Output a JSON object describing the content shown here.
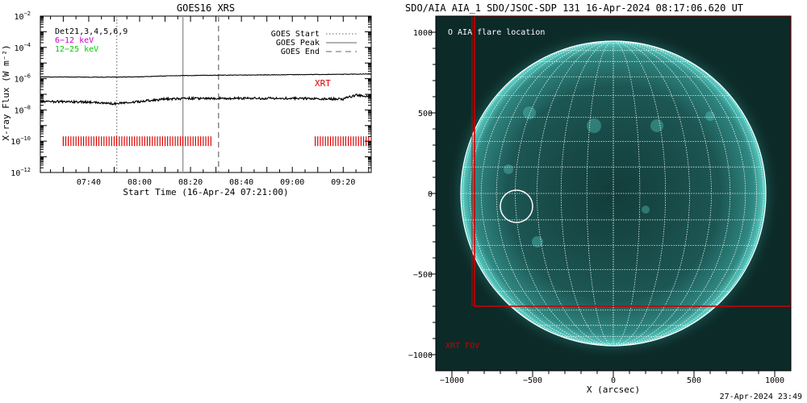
{
  "chart_data": [
    {
      "type": "line",
      "title": "GOES16 XRS",
      "xlabel": "Start Time (16-Apr-24 07:21:00)",
      "ylabel": "X-ray Flux (W m⁻²)",
      "xlim": [
        "07:21",
        "09:31"
      ],
      "y_scale": "log",
      "ylim": [
        1e-12,
        0.01
      ],
      "x_ticks": [
        "07:40",
        "08:00",
        "08:20",
        "08:40",
        "09:00",
        "09:20"
      ],
      "y_ticks": [
        {
          "value": 1e-12,
          "base": "10",
          "exp": "−12"
        },
        {
          "value": 1e-10,
          "base": "10",
          "exp": "−10"
        },
        {
          "value": 1e-08,
          "base": "10",
          "exp": "−8"
        },
        {
          "value": 1e-06,
          "base": "10",
          "exp": "−6"
        },
        {
          "value": 0.0001,
          "base": "10",
          "exp": "−4"
        },
        {
          "value": 0.01,
          "base": "10",
          "exp": "−2"
        }
      ],
      "channel_labels": [
        {
          "text": "Det21,3,4,5,6,9",
          "color": "#000000"
        },
        {
          "text": "6−12 keV",
          "color": "#cc00cc"
        },
        {
          "text": "12−25 keV",
          "color": "#00cc00"
        }
      ],
      "legend": {
        "position": "top-right",
        "entries": [
          {
            "label": "GOES Start",
            "style": "dotted"
          },
          {
            "label": "GOES Peak",
            "style": "solid"
          },
          {
            "label": "GOES End",
            "style": "dashed"
          }
        ]
      },
      "event_lines": [
        {
          "time": "07:51",
          "style": "dotted"
        },
        {
          "time": "08:17",
          "style": "solid"
        },
        {
          "time": "08:31",
          "style": "dashed"
        }
      ],
      "series": [
        {
          "name": "",
          "color": "#000000",
          "x": [
            "07:21",
            "07:40",
            "08:00",
            "08:10",
            "08:20",
            "08:40",
            "09:00",
            "09:20",
            "09:31"
          ],
          "y": [
            1.3e-06,
            1.25e-06,
            1.3e-06,
            1.5e-06,
            1.6e-06,
            1.7e-06,
            1.8e-06,
            1.9e-06,
            2e-06
          ]
        },
        {
          "name": "",
          "color": "#000000",
          "x": [
            "07:21",
            "07:40",
            "07:50",
            "08:00",
            "08:10",
            "08:20",
            "08:40",
            "09:00",
            "09:20",
            "09:25",
            "09:31"
          ],
          "y": [
            3.5e-08,
            3.2e-08,
            2.5e-08,
            3.5e-08,
            5e-08,
            5.5e-08,
            5.5e-08,
            5.5e-08,
            5e-08,
            9e-08,
            7e-08
          ]
        }
      ],
      "xrt": {
        "label": "XRT",
        "color": "#dd0000",
        "level": 1e-10,
        "coverage": [
          [
            "07:30",
            "08:28"
          ],
          [
            "09:09",
            "09:31"
          ]
        ]
      }
    },
    {
      "type": "image",
      "title": "SDO/AIA AIA_1 SDO/JSOC-SDP 131 16-Apr-2024 08:17:06.620 UT",
      "xlabel": "X (arcsec)",
      "xlim": [
        -1100,
        1100
      ],
      "ylim": [
        -1100,
        1100
      ],
      "x_ticks": [
        -1000,
        -500,
        0,
        500,
        1000
      ],
      "y_ticks": [
        -1000,
        -500,
        0,
        500,
        1000
      ],
      "x_tick_labels": [
        "−1000",
        "−500",
        "0",
        "500",
        "1000"
      ],
      "y_tick_labels": [
        "−1000",
        "−500",
        "0",
        "500",
        "1000"
      ],
      "solar_radius": 945,
      "grid_spacing_deg": 10,
      "flare": {
        "label": "O AIA flare location",
        "x": -600,
        "y": -80
      },
      "fov": {
        "label": "XRT FOV",
        "color": "#cc0000",
        "x_min": -860,
        "x_max": 1100,
        "y_min": -700,
        "y_max": 1100
      }
    }
  ],
  "footer": {
    "timestamp": "27-Apr-2024 23:49"
  }
}
